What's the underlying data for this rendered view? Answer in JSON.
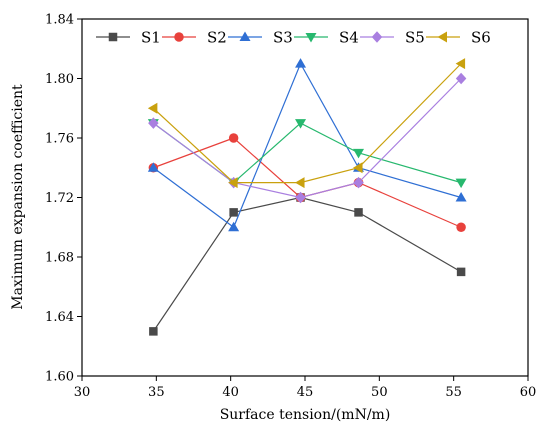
{
  "chart_data": {
    "type": "line",
    "xlabel": "Surface tension/(mN/m)",
    "ylabel": "Maximum expansion coefficient",
    "xlim": [
      30,
      60
    ],
    "ylim": [
      1.6,
      1.84
    ],
    "xticks": [
      30,
      35,
      40,
      45,
      50,
      55,
      60
    ],
    "yticks": [
      1.6,
      1.64,
      1.68,
      1.72,
      1.76,
      1.8,
      1.84
    ],
    "x": [
      34.8,
      40.2,
      44.7,
      48.6,
      55.5
    ],
    "grid": false,
    "legend_position": "top",
    "series": [
      {
        "name": "S1",
        "color": "#4a4a4a",
        "marker": "square",
        "values": [
          1.63,
          1.71,
          1.72,
          1.71,
          1.67
        ]
      },
      {
        "name": "S2",
        "color": "#e8413c",
        "marker": "circle",
        "values": [
          1.74,
          1.76,
          1.72,
          1.73,
          1.7
        ]
      },
      {
        "name": "S3",
        "color": "#2f6fd4",
        "marker": "triangle-up",
        "values": [
          1.74,
          1.7,
          1.81,
          1.74,
          1.72
        ]
      },
      {
        "name": "S4",
        "color": "#27b86e",
        "marker": "triangle-down",
        "values": [
          1.77,
          1.73,
          1.77,
          1.75,
          1.73
        ]
      },
      {
        "name": "S5",
        "color": "#a97fe0",
        "marker": "diamond",
        "values": [
          1.77,
          1.73,
          1.72,
          1.73,
          1.8
        ]
      },
      {
        "name": "S6",
        "color": "#c9a10e",
        "marker": "triangle-left",
        "values": [
          1.78,
          1.73,
          1.73,
          1.74,
          1.81
        ]
      }
    ]
  }
}
